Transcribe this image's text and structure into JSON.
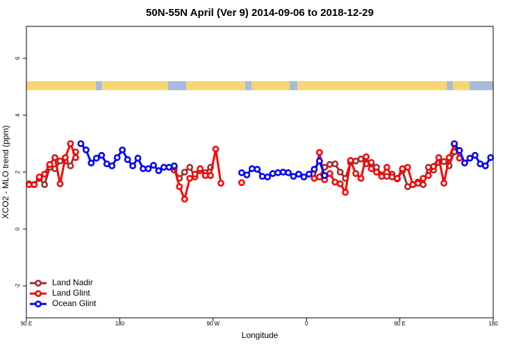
{
  "chart_data": {
    "type": "line",
    "title": "50N-55N April (Ver 9)   2014-09-06 to 2018-12-29",
    "x_label": "Longitude",
    "y_label": "XCO2 - MLO trend (ppm)",
    "xlim": [
      90,
      540
    ],
    "ylim": [
      -3.12,
      7.12
    ],
    "xticks": [
      {
        "value": 90,
        "label": "90 E"
      },
      180,
      {
        "value": 270,
        "label": "90 W"
      },
      {
        "value": 360,
        "label": "0"
      },
      {
        "value": 450,
        "label": "90 E"
      },
      {
        "value": 540,
        "label": "180"
      }
    ],
    "yticks": [
      -2,
      0,
      2,
      4,
      6
    ],
    "legend": "bottom-left",
    "series": [
      {
        "name": "Land Nadir",
        "color": "#a52a2a",
        "x": [
          92.5,
          97.5,
          102.5,
          107.5,
          112.5,
          117.5,
          122.5,
          127.5,
          132.5,
          137.5,
          185,
          232.5,
          237.5,
          242.5,
          247.5,
          252.5,
          257.5,
          262.5,
          267.5,
          320,
          372.5,
          377.5,
          382.5,
          387.5,
          392.5,
          397.5,
          402.5,
          407.5,
          412.5,
          417.5,
          422.5,
          427.5,
          432.5,
          437.5,
          442.5,
          447.5,
          452.5,
          457.5,
          462.5,
          467.5,
          472.5,
          477.5,
          482.5,
          487.5,
          492.5,
          497.5,
          502.5
        ],
        "values": [
          1.59,
          1.56,
          1.78,
          1.56,
          2.17,
          2.12,
          2.39,
          2.39,
          2.22,
          2.71,
          null,
          2.07,
          1.78,
          2.0,
          2.17,
          1.83,
          2.05,
          1.98,
          2.17,
          null,
          1.83,
          2.17,
          2.27,
          2.29,
          2.0,
          1.78,
          2.34,
          2.39,
          2.46,
          2.29,
          2.34,
          2.17,
          1.9,
          1.85,
          1.93,
          1.76,
          2.05,
          1.49,
          1.56,
          1.65,
          1.56,
          2.17,
          2.07,
          2.34,
          2.37,
          2.22,
          2.71
        ]
      },
      {
        "name": "Land Glint",
        "color": "#ff0000",
        "x": [
          92.5,
          97.5,
          102.5,
          107.5,
          112.5,
          117.5,
          122.5,
          127.5,
          132.5,
          137.5,
          185,
          232.5,
          237.5,
          242.5,
          247.5,
          252.5,
          257.5,
          262.5,
          267.5,
          272.5,
          277.5,
          287,
          297.5,
          330,
          367.5,
          372.5,
          377.5,
          382.5,
          387.5,
          392.5,
          397.5,
          402.5,
          407.5,
          412.5,
          417.5,
          422.5,
          427.5,
          432.5,
          437.5,
          442.5,
          447.5,
          452.5,
          457.5,
          462.5,
          467.5,
          472.5,
          477.5,
          482.5,
          487.5,
          492.5,
          497.5,
          502.5,
          507.5
        ],
        "values": [
          1.56,
          1.56,
          1.83,
          1.93,
          2.27,
          2.51,
          1.59,
          2.51,
          3.0,
          2.51,
          null,
          2.17,
          1.49,
          1.05,
          1.78,
          1.93,
          2.12,
          1.88,
          1.88,
          2.81,
          1.61,
          null,
          1.63,
          null,
          1.78,
          2.69,
          1.73,
          1.95,
          1.65,
          1.59,
          1.29,
          2.41,
          1.95,
          1.78,
          2.54,
          2.12,
          2.0,
          1.85,
          2.17,
          1.83,
          1.78,
          2.12,
          2.17,
          1.56,
          1.61,
          1.78,
          1.88,
          2.2,
          2.51,
          1.61,
          2.51,
          2.98,
          2.49
        ]
      },
      {
        "name": "Ocean Glint",
        "color": "#0000ff",
        "x": [
          142.5,
          147.5,
          152.5,
          157.5,
          162.5,
          167.5,
          172.5,
          177.5,
          182.5,
          187.5,
          192.5,
          197.5,
          202.5,
          207.5,
          212.5,
          217.5,
          222.5,
          227.5,
          232.5,
          265,
          297.5,
          302.5,
          307.5,
          312.5,
          317.5,
          322.5,
          327.5,
          332.5,
          337.5,
          342.5,
          347.5,
          352.5,
          357.5,
          362.5,
          367.5,
          372.5,
          377.5,
          440,
          502.5,
          507.5,
          512.5,
          517.5,
          522.5,
          527.5,
          532.5,
          537.5
        ],
        "values": [
          3.0,
          2.78,
          2.32,
          2.49,
          2.59,
          2.29,
          2.22,
          2.51,
          2.78,
          2.44,
          2.22,
          2.49,
          2.12,
          2.12,
          2.24,
          2.05,
          2.17,
          2.17,
          2.22,
          null,
          1.98,
          1.9,
          2.12,
          2.1,
          1.85,
          1.83,
          1.95,
          1.98,
          2.0,
          1.98,
          1.85,
          1.93,
          1.83,
          1.93,
          2.1,
          2.39,
          1.88,
          null,
          3.0,
          2.76,
          2.32,
          2.49,
          2.59,
          2.29,
          2.22,
          2.51
        ]
      }
    ]
  }
}
